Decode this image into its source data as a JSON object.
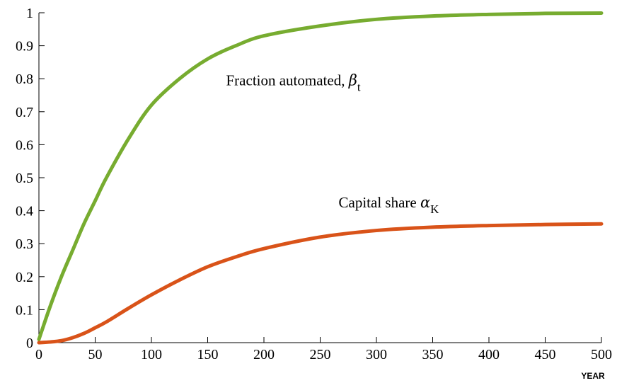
{
  "chart_data": {
    "type": "line",
    "xlabel": "YEAR",
    "ylabel": "",
    "title": "",
    "xlim": [
      0,
      500
    ],
    "ylim": [
      0,
      1
    ],
    "xticks": [
      "0",
      "50",
      "100",
      "150",
      "200",
      "250",
      "300",
      "350",
      "400",
      "450",
      "500"
    ],
    "yticks": [
      "0",
      "0.1",
      "0.2",
      "0.3",
      "0.4",
      "0.5",
      "0.6",
      "0.7",
      "0.8",
      "0.9",
      "1"
    ],
    "grid": false,
    "series": [
      {
        "name": "Fraction automated, βt",
        "color": "#77ac30",
        "x": [
          0,
          10,
          20,
          30,
          40,
          50,
          60,
          80,
          100,
          125,
          150,
          175,
          200,
          250,
          300,
          350,
          400,
          450,
          500
        ],
        "y": [
          0.01,
          0.11,
          0.2,
          0.28,
          0.36,
          0.43,
          0.5,
          0.62,
          0.72,
          0.8,
          0.86,
          0.9,
          0.93,
          0.96,
          0.98,
          0.99,
          0.995,
          0.998,
          0.999
        ]
      },
      {
        "name": "Capital share αK",
        "color": "#d95319",
        "x": [
          0,
          10,
          20,
          30,
          40,
          50,
          60,
          80,
          100,
          125,
          150,
          175,
          200,
          250,
          300,
          350,
          400,
          450,
          500
        ],
        "y": [
          0.0,
          0.002,
          0.006,
          0.015,
          0.028,
          0.045,
          0.063,
          0.105,
          0.145,
          0.19,
          0.23,
          0.26,
          0.285,
          0.32,
          0.34,
          0.35,
          0.355,
          0.358,
          0.36
        ]
      }
    ],
    "annotations": [
      {
        "text": "Fraction automated, ",
        "symbol": "β",
        "subscript": "t",
        "x": 150,
        "y": 0.78,
        "series": 0
      },
      {
        "text": "Capital share ",
        "symbol": "α",
        "subscript": "K",
        "x": 250,
        "y": 0.41,
        "series": 1
      }
    ]
  }
}
